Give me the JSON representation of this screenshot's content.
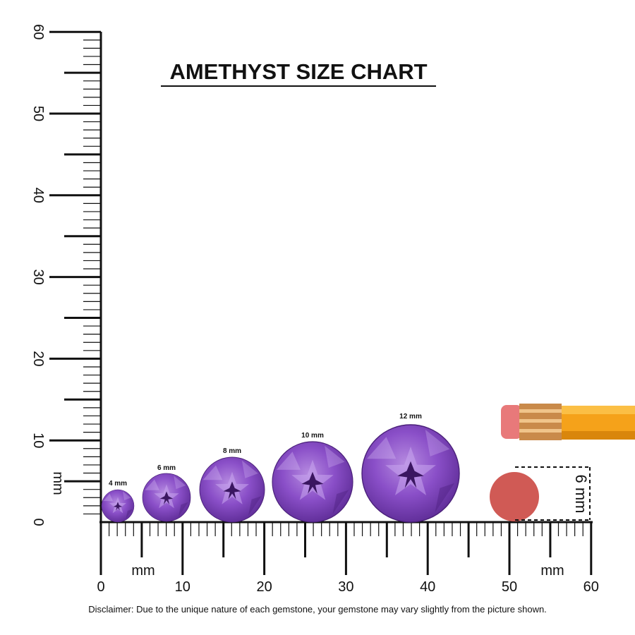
{
  "title": "AMETHYST SIZE CHART",
  "vertical_ruler": {
    "labels": [
      "0",
      "10",
      "20",
      "30",
      "40",
      "50",
      "60"
    ],
    "unit": "mm"
  },
  "horizontal_ruler": {
    "labels": [
      "0",
      "10",
      "20",
      "30",
      "40",
      "50",
      "60"
    ],
    "units": [
      "mm",
      "mm"
    ]
  },
  "gems": [
    {
      "label": "4 mm"
    },
    {
      "label": "6 mm"
    },
    {
      "label": "8 mm"
    },
    {
      "label": "10 mm"
    },
    {
      "label": "12 mm"
    }
  ],
  "eraser": {
    "label": "6 mm"
  },
  "disclaimer": "Disclaimer: Due to the unique nature of each gemstone, your gemstone may vary slightly from the picture shown."
}
